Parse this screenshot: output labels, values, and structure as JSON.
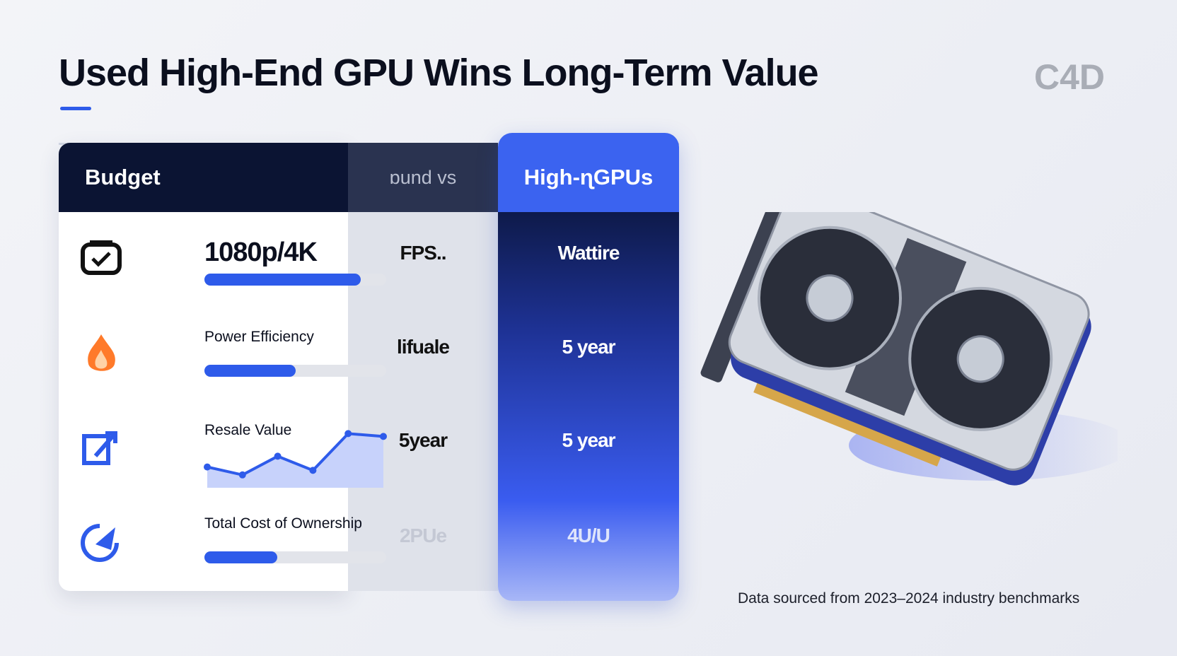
{
  "header": {
    "title": "Used High-End GPU Wins Long-Term Value",
    "logo": "C4D"
  },
  "table": {
    "columns": [
      "Budget",
      "ɒund vs",
      "High-ɳGPUs"
    ],
    "rows": [
      {
        "label": "1080p/4K",
        "budget": "FPS..",
        "high": "Wattire",
        "progress": 86
      },
      {
        "label": "Power Efficiency",
        "budget": "lifuale",
        "high": "5 year",
        "progress": 50
      },
      {
        "label": "Resale Value",
        "budget": "5year",
        "high": "5 year",
        "trend": [
          33,
          19,
          52,
          27,
          92,
          87
        ]
      },
      {
        "label": "Total Cost of Ownership",
        "budget": "2PUe",
        "high": "4U/U",
        "progress": 40
      }
    ]
  },
  "footnote": "Data sourced from 2023–2024 industry benchmarks"
}
